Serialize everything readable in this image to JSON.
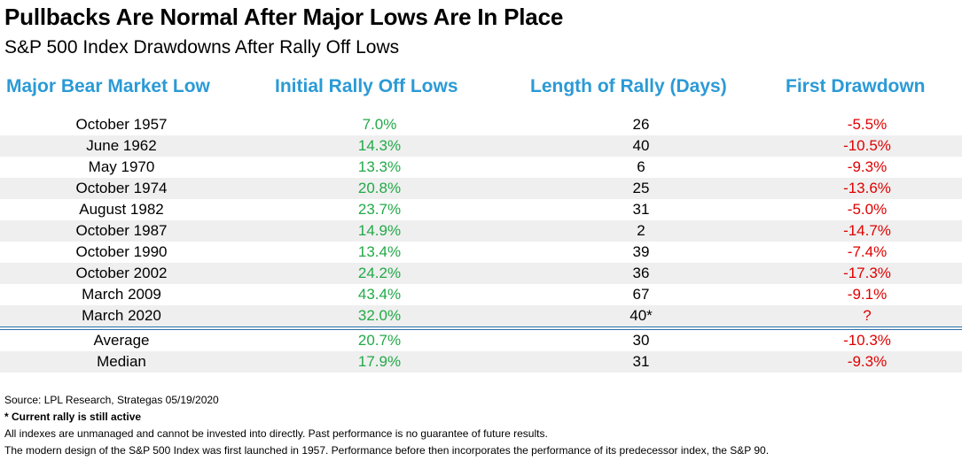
{
  "title": "Pullbacks Are Normal After Major Lows Are In Place",
  "subtitle": "S&P 500 Index Drawdowns After Rally Off Lows",
  "colors": {
    "header": "#2b9ad6",
    "positive": "#22a948",
    "negative": "#e00000",
    "divider": "#2a6fa8"
  },
  "headers": [
    "Major Bear Market Low",
    "Initial Rally Off Lows",
    "Length of Rally (Days)",
    "First Drawdown"
  ],
  "rows": [
    {
      "low": "October 1957",
      "rally": "7.0%",
      "days": "26",
      "drawdown": "-5.5%"
    },
    {
      "low": "June 1962",
      "rally": "14.3%",
      "days": "40",
      "drawdown": "-10.5%"
    },
    {
      "low": "May 1970",
      "rally": "13.3%",
      "days": "6",
      "drawdown": "-9.3%"
    },
    {
      "low": "October 1974",
      "rally": "20.8%",
      "days": "25",
      "drawdown": "-13.6%"
    },
    {
      "low": "August 1982",
      "rally": "23.7%",
      "days": "31",
      "drawdown": "-5.0%"
    },
    {
      "low": "October 1987",
      "rally": "14.9%",
      "days": "2",
      "drawdown": "-14.7%"
    },
    {
      "low": "October 1990",
      "rally": "13.4%",
      "days": "39",
      "drawdown": "-7.4%"
    },
    {
      "low": "October 2002",
      "rally": "24.2%",
      "days": "36",
      "drawdown": "-17.3%"
    },
    {
      "low": "March 2009",
      "rally": "43.4%",
      "days": "67",
      "drawdown": "-9.1%"
    },
    {
      "low": "March 2020",
      "rally": "32.0%",
      "days": "40*",
      "drawdown": "?"
    }
  ],
  "summary": [
    {
      "low": "Average",
      "rally": "20.7%",
      "days": "30",
      "drawdown": "-10.3%"
    },
    {
      "low": "Median",
      "rally": "17.9%",
      "days": "31",
      "drawdown": "-9.3%"
    }
  ],
  "footnotes": {
    "source": "Source: LPL Research, Strategas 05/19/2020",
    "asterisk": "* Current rally is still active",
    "disclaimer": "All indexes are unmanaged and cannot be invested into directly. Past performance is no guarantee of future results.",
    "history": "The modern design of the S&P 500 Index was first launched in 1957. Performance before then incorporates the performance of its predecessor index, the S&P 90."
  }
}
